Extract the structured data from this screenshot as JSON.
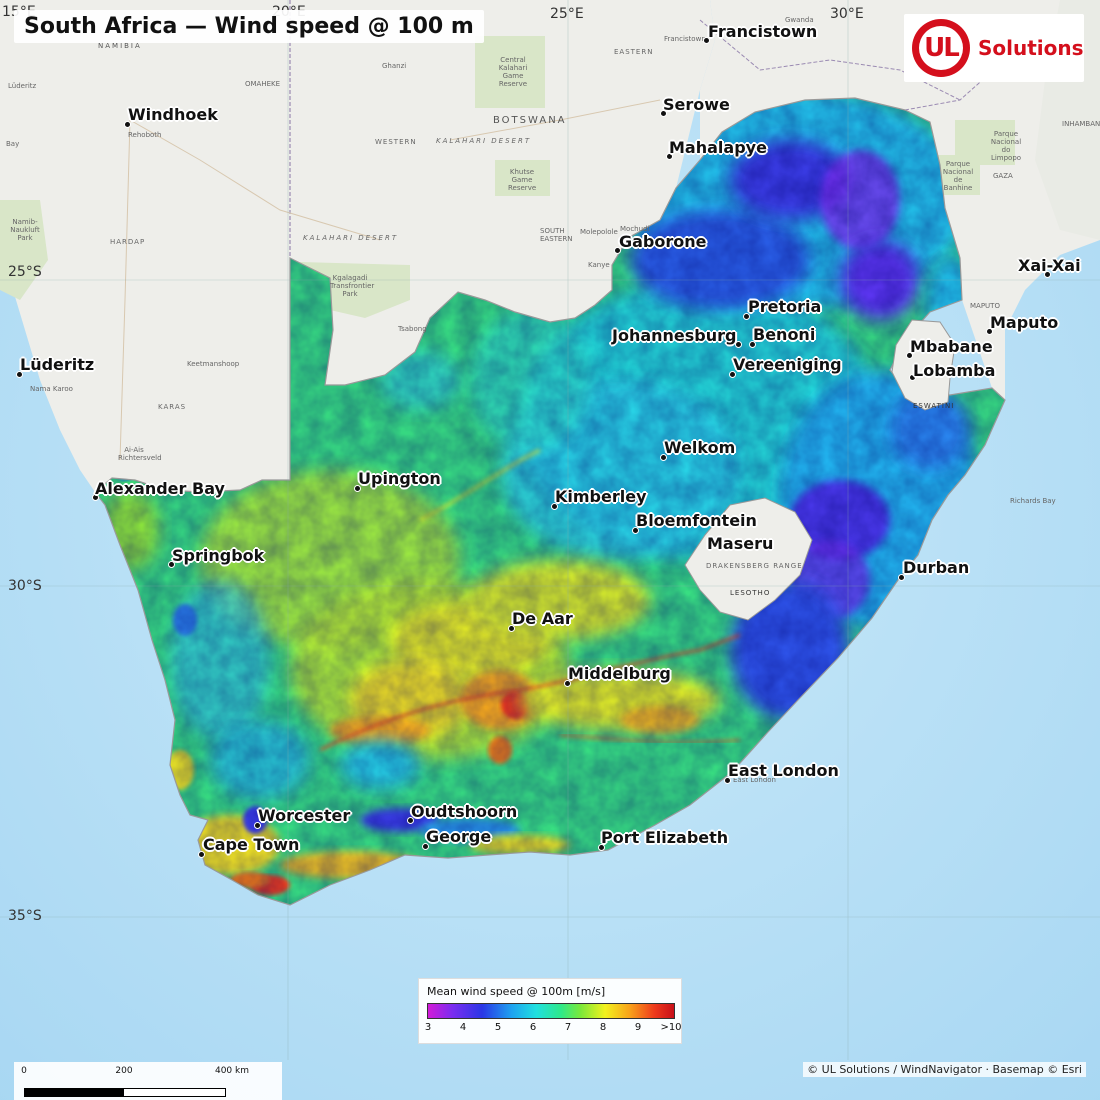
{
  "title": "South Africa — Wind speed @ 100 m",
  "logo": {
    "mark": "UL",
    "text": "Solutions"
  },
  "coordinates": {
    "lon_labels": [
      "15°E",
      "20°E",
      "25°E",
      "30°E"
    ],
    "lat_labels": [
      "25°S",
      "30°S",
      "35°S"
    ]
  },
  "cities": [
    {
      "name": "Francistown"
    },
    {
      "name": "Windhoek"
    },
    {
      "name": "Serowe"
    },
    {
      "name": "Mahalapye"
    },
    {
      "name": "Gaborone"
    },
    {
      "name": "Xai-Xai"
    },
    {
      "name": "Pretoria"
    },
    {
      "name": "Maputo"
    },
    {
      "name": "Johannesburg"
    },
    {
      "name": "Benoni"
    },
    {
      "name": "Mbabane"
    },
    {
      "name": "Lüderitz"
    },
    {
      "name": "Vereeniging"
    },
    {
      "name": "Lobamba"
    },
    {
      "name": "Welkom"
    },
    {
      "name": "Upington"
    },
    {
      "name": "Alexander Bay"
    },
    {
      "name": "Kimberley"
    },
    {
      "name": "Bloemfontein"
    },
    {
      "name": "Maseru"
    },
    {
      "name": "Springbok"
    },
    {
      "name": "Durban"
    },
    {
      "name": "De Aar"
    },
    {
      "name": "Middelburg"
    },
    {
      "name": "East London"
    },
    {
      "name": "Oudtshoorn"
    },
    {
      "name": "Worcester"
    },
    {
      "name": "George"
    },
    {
      "name": "Cape Town"
    },
    {
      "name": "Port Elizabeth"
    }
  ],
  "basemap_labels": {
    "botswana": "BOTSWANA",
    "kalahari_desert_bw": "KALAHARI DESERT",
    "kalahari_desert": "KALAHARI DESERT",
    "namibia": "NAMIBIA",
    "eswatini": "ESWATINI",
    "lesotho": "LESOTHO",
    "drakensberg": "DRAKENSBERG RANGE",
    "eastern": "EASTERN",
    "western": "WESTERN",
    "hardap": "HARDAP",
    "karas": "KARAS",
    "ghanzi": "Ghanzi",
    "omaheke": "OMAHEKE",
    "keetmanshoop": "Keetmanshoop",
    "tsabong": "Tsabong",
    "kgalagadi": "Kgalagadi Transfrontier Park",
    "central_kalahari": "Central Kalahari Game Reserve",
    "khutse": "Khutse Game Reserve",
    "molepolole": "Molepolole",
    "mochudi": "Mochudi",
    "kanye": "Kanye",
    "south_eastern": "SOUTH EASTERN",
    "francistown_small": "Francistown",
    "gwanda": "Gwanda",
    "limpopo": "Parque Nacional do Limpopo",
    "banhine": "Parque Nacional de Banhine",
    "gaza": "GAZA",
    "maputo_small": "MAPUTO",
    "namib_naukluft": "Namib-Naukluft Park",
    "rehoboth": "Rehoboth",
    "nama_karoo": "Nama Karoo",
    "ais_ais": "Ai-Ais Richtersveld",
    "inhambane": "INHAMBANE",
    "richards_bay": "Richards Bay",
    "east_london_small": "East London",
    "bay": "Bay",
    "luderitz_small": "Lüderitz"
  },
  "legend": {
    "title": "Mean wind speed @ 100m  [m/s]",
    "ticks": [
      "3",
      "4",
      "5",
      "6",
      "7",
      "8",
      "9",
      ">10"
    ],
    "range_ms": [
      3,
      10
    ]
  },
  "scale_bar": {
    "labels": [
      "0",
      "200",
      "400 km"
    ]
  },
  "attribution": "© UL Solutions / WindNavigator · Basemap © Esri",
  "colors": {
    "ocean": "#bfe3f7",
    "land": "#eeeeea",
    "park": "#d9e6c8",
    "ramp": [
      "#d21bd8",
      "#7a2df0",
      "#2a36e6",
      "#1ea2f0",
      "#20e0e0",
      "#2ee88a",
      "#7ae83a",
      "#f2f21e",
      "#f8a21a",
      "#ee3a1c",
      "#c8101a"
    ],
    "logo_red": "#d40f1c"
  },
  "icons": [
    "city-dot-icon",
    "ul-logo-icon"
  ]
}
